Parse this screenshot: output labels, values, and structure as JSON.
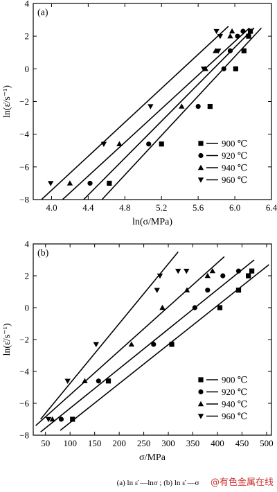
{
  "caption": "(a) ln ε̇ —lnσ ; (b) ln ε̇ —σ",
  "watermark": "@有色金属在线",
  "chart_data": [
    {
      "type": "scatter",
      "panel_label": "(a)",
      "xlabel": "ln(σ/MPa)",
      "ylabel": "ln(ε̇/s⁻¹)",
      "xlim": [
        3.8,
        6.4
      ],
      "ylim": [
        -8,
        4
      ],
      "xticks": [
        4.0,
        4.4,
        4.8,
        5.2,
        5.6,
        6.0,
        6.4
      ],
      "yticks": [
        -8,
        -6,
        -4,
        -2,
        0,
        2,
        4
      ],
      "grid": false,
      "legend_position": "bottom-right",
      "series": [
        {
          "name": "900 ℃",
          "marker": "square",
          "x": [
            4.63,
            5.2,
            5.73,
            6.01,
            6.1,
            6.15,
            6.17
          ],
          "y": [
            -7.0,
            -4.6,
            -2.3,
            0.0,
            1.1,
            2.0,
            2.3
          ],
          "fit": [
            [
              4.55,
              -8.0
            ],
            [
              6.29,
              2.5
            ]
          ]
        },
        {
          "name": "920 ℃",
          "marker": "circle",
          "x": [
            4.42,
            5.06,
            5.6,
            5.88,
            5.95,
            6.03,
            6.09
          ],
          "y": [
            -7.0,
            -4.6,
            -2.3,
            0.0,
            1.1,
            2.0,
            2.3
          ],
          "fit": [
            [
              4.35,
              -8.0
            ],
            [
              6.21,
              2.5
            ]
          ]
        },
        {
          "name": "940 ℃",
          "marker": "triangle-up",
          "x": [
            4.2,
            4.74,
            5.42,
            5.68,
            5.79,
            5.95,
            5.97
          ],
          "y": [
            -7.0,
            -4.6,
            -2.3,
            0.0,
            1.1,
            2.0,
            2.3
          ],
          "fit": [
            [
              4.12,
              -8.0
            ],
            [
              6.16,
              2.5
            ]
          ]
        },
        {
          "name": "960 ℃",
          "marker": "triangle-down",
          "x": [
            3.99,
            4.57,
            5.08,
            5.66,
            5.82,
            5.84,
            5.8
          ],
          "y": [
            -7.0,
            -4.6,
            -2.3,
            0.0,
            1.1,
            2.0,
            2.3
          ],
          "fit": [
            [
              3.89,
              -8.0
            ],
            [
              5.93,
              2.6
            ]
          ]
        }
      ]
    },
    {
      "type": "scatter",
      "panel_label": "(b)",
      "xlabel": "σ/MPa",
      "ylabel": "ln(ε̇/s⁻¹)",
      "xlim": [
        25,
        510
      ],
      "ylim": [
        -8,
        4
      ],
      "xticks": [
        50,
        100,
        150,
        200,
        250,
        300,
        350,
        400,
        450,
        500
      ],
      "yticks": [
        -8,
        -6,
        -4,
        -2,
        0,
        2,
        4
      ],
      "grid": false,
      "legend_position": "bottom-right",
      "series": [
        {
          "name": "900 ℃",
          "marker": "square",
          "x": [
            105,
            178,
            307,
            405,
            443,
            463,
            470
          ],
          "y": [
            -7.0,
            -4.6,
            -2.3,
            0.0,
            1.1,
            2.0,
            2.3
          ],
          "fit": [
            [
              80,
              -7.7
            ],
            [
              505,
              2.7
            ]
          ]
        },
        {
          "name": "920 ℃",
          "marker": "circle",
          "x": [
            82,
            158,
            270,
            354,
            380,
            411,
            443
          ],
          "y": [
            -7.0,
            -4.6,
            -2.3,
            0.0,
            1.1,
            2.0,
            2.3
          ],
          "fit": [
            [
              40,
              -7.8
            ],
            [
              475,
              3.0
            ]
          ]
        },
        {
          "name": "940 ℃",
          "marker": "triangle-up",
          "x": [
            64,
            130,
            225,
            288,
            338,
            380,
            390
          ],
          "y": [
            -7.0,
            -4.6,
            -2.3,
            0.0,
            1.1,
            2.0,
            2.3
          ],
          "fit": [
            [
              30,
              -7.4
            ],
            [
              414,
              3.2
            ]
          ]
        },
        {
          "name": "960 ℃",
          "marker": "triangle-down",
          "x": [
            56,
            95,
            153,
            277,
            283,
            320,
            337
          ],
          "y": [
            -7.0,
            -4.6,
            -2.3,
            1.1,
            2.0,
            2.3,
            2.3
          ],
          "fit": [
            [
              40,
              -7.0
            ],
            [
              320,
              3.5
            ]
          ]
        }
      ]
    }
  ]
}
